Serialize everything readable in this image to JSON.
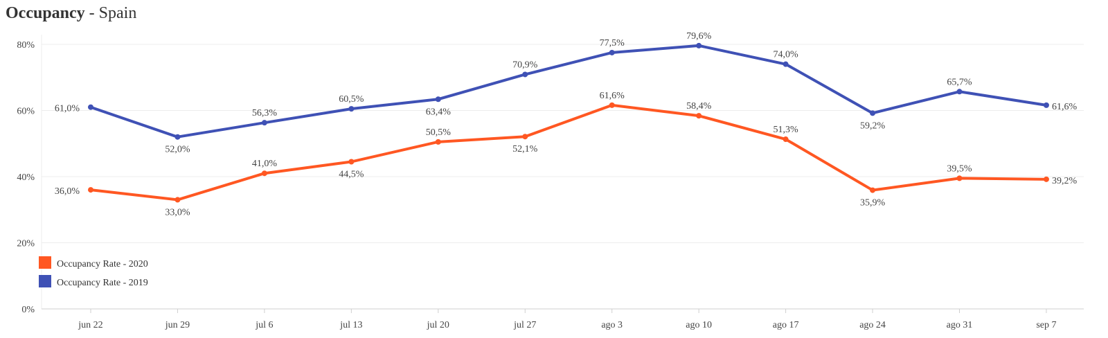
{
  "chart_data": {
    "type": "line",
    "title": "Occupancy",
    "subtitle": "Spain",
    "title_separator": " - ",
    "categories": [
      "jun 22",
      "jun 29",
      "jul 6",
      "jul 13",
      "jul 20",
      "jul 27",
      "ago 3",
      "ago 10",
      "ago 17",
      "ago 24",
      "ago 31",
      "sep 7"
    ],
    "y_ticks": [
      0,
      20,
      40,
      60,
      80
    ],
    "y_tick_labels": [
      "0%",
      "20%",
      "40%",
      "60%",
      "80%"
    ],
    "ylim": [
      0,
      80
    ],
    "grid": true,
    "legend_position": "bottom-left",
    "series": [
      {
        "name": "Occupancy Rate - 2020",
        "color": "#ff5722",
        "values": [
          36.0,
          33.0,
          41.0,
          44.5,
          50.5,
          52.1,
          61.6,
          58.4,
          51.3,
          35.9,
          39.5,
          39.2
        ],
        "labels": [
          "36,0%",
          "33,0%",
          "41,0%",
          "44,5%",
          "50,5%",
          "52,1%",
          "61,6%",
          "58,4%",
          "51,3%",
          "35,9%",
          "39,5%",
          "39,2%"
        ]
      },
      {
        "name": "Occupancy Rate - 2019",
        "color": "#3f51b5",
        "values": [
          61.0,
          52.0,
          56.3,
          60.5,
          63.4,
          70.9,
          77.5,
          79.6,
          74.0,
          59.2,
          65.7,
          61.6
        ],
        "labels": [
          "61,0%",
          "52,0%",
          "56,3%",
          "60,5%",
          "63,4%",
          "70,9%",
          "77,5%",
          "79,6%",
          "74,0%",
          "59,2%",
          "65,7%",
          "61,6%"
        ]
      }
    ]
  }
}
